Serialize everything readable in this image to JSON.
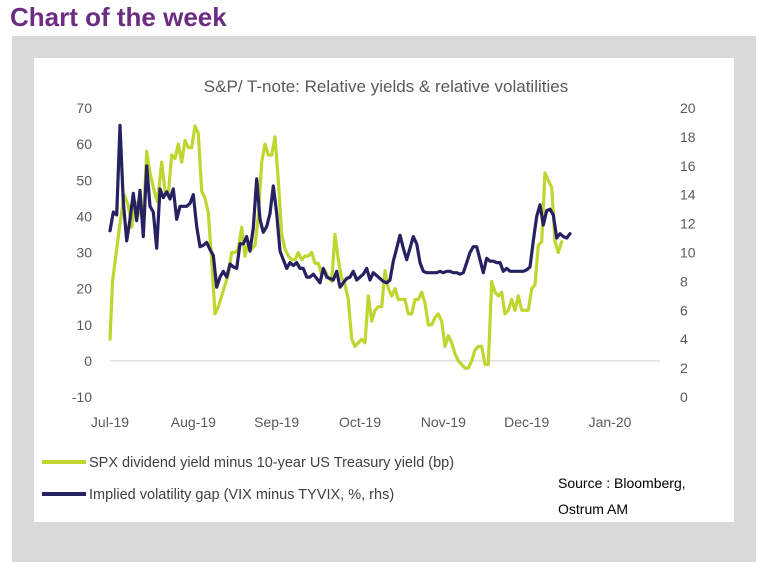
{
  "page": {
    "heading": "Chart of the week"
  },
  "colors": {
    "heading": "#6b2c82",
    "series_dividend": "#bfd630",
    "series_vol": "#262262",
    "frame": "#d9d9d9"
  },
  "chart_data": {
    "type": "line",
    "title": "S&P/ T-note: Relative yields & relative volatilities",
    "x_tick_labels": [
      "Jul-19",
      "Aug-19",
      "Sep-19",
      "Oct-19",
      "Nov-19",
      "Dec-19",
      "Jan-20"
    ],
    "x_range": [
      0,
      6.6
    ],
    "y_left": {
      "range": [
        -10,
        70
      ],
      "ticks": [
        -10,
        0,
        10,
        20,
        30,
        40,
        50,
        60,
        70
      ]
    },
    "y_right": {
      "range": [
        0,
        20
      ],
      "ticks": [
        0,
        2,
        4,
        6,
        8,
        10,
        12,
        14,
        16,
        18,
        20
      ]
    },
    "series": [
      {
        "name": "SPX dividend yield minus 10-year US Treasury yield (bp)",
        "axis": "left",
        "color": "#bfd630",
        "points": [
          [
            0.0,
            6
          ],
          [
            0.03,
            22
          ],
          [
            0.07,
            29
          ],
          [
            0.12,
            38
          ],
          [
            0.17,
            46
          ],
          [
            0.22,
            43
          ],
          [
            0.26,
            37
          ],
          [
            0.3,
            44
          ],
          [
            0.35,
            42
          ],
          [
            0.4,
            38
          ],
          [
            0.44,
            58
          ],
          [
            0.48,
            52
          ],
          [
            0.52,
            48
          ],
          [
            0.57,
            44
          ],
          [
            0.62,
            55
          ],
          [
            0.66,
            47
          ],
          [
            0.7,
            46
          ],
          [
            0.74,
            57
          ],
          [
            0.78,
            56
          ],
          [
            0.82,
            60
          ],
          [
            0.86,
            55
          ],
          [
            0.9,
            61
          ],
          [
            0.94,
            59
          ],
          [
            0.98,
            59
          ],
          [
            1.02,
            65
          ],
          [
            1.06,
            63
          ],
          [
            1.1,
            47
          ],
          [
            1.14,
            45
          ],
          [
            1.18,
            41
          ],
          [
            1.22,
            28
          ],
          [
            1.26,
            13
          ],
          [
            1.3,
            15
          ],
          [
            1.34,
            18
          ],
          [
            1.38,
            21
          ],
          [
            1.42,
            24
          ],
          [
            1.46,
            30
          ],
          [
            1.5,
            30
          ],
          [
            1.54,
            31
          ],
          [
            1.58,
            37
          ],
          [
            1.62,
            29
          ],
          [
            1.66,
            33
          ],
          [
            1.7,
            31
          ],
          [
            1.74,
            32
          ],
          [
            1.78,
            40
          ],
          [
            1.82,
            55
          ],
          [
            1.86,
            60
          ],
          [
            1.9,
            57
          ],
          [
            1.94,
            57
          ],
          [
            1.98,
            62
          ],
          [
            2.02,
            50
          ],
          [
            2.06,
            35
          ],
          [
            2.1,
            31
          ],
          [
            2.14,
            29
          ],
          [
            2.18,
            28
          ],
          [
            2.22,
            28
          ],
          [
            2.26,
            30
          ],
          [
            2.3,
            28
          ],
          [
            2.34,
            29
          ],
          [
            2.38,
            29
          ],
          [
            2.42,
            30
          ],
          [
            2.46,
            27
          ],
          [
            2.5,
            27
          ],
          [
            2.54,
            24
          ],
          [
            2.58,
            25
          ],
          [
            2.62,
            23
          ],
          [
            2.66,
            22
          ],
          [
            2.7,
            35
          ],
          [
            2.74,
            28
          ],
          [
            2.78,
            23
          ],
          [
            2.82,
            21
          ],
          [
            2.86,
            17
          ],
          [
            2.9,
            6
          ],
          [
            2.94,
            4
          ],
          [
            2.98,
            5
          ],
          [
            3.02,
            6
          ],
          [
            3.06,
            5
          ],
          [
            3.1,
            18
          ],
          [
            3.14,
            11
          ],
          [
            3.18,
            14
          ],
          [
            3.22,
            15
          ],
          [
            3.26,
            15
          ],
          [
            3.3,
            25
          ],
          [
            3.34,
            20
          ],
          [
            3.38,
            18
          ],
          [
            3.42,
            20
          ],
          [
            3.46,
            17
          ],
          [
            3.5,
            17
          ],
          [
            3.54,
            17
          ],
          [
            3.58,
            13
          ],
          [
            3.62,
            13
          ],
          [
            3.66,
            17
          ],
          [
            3.7,
            17
          ],
          [
            3.74,
            19
          ],
          [
            3.78,
            16
          ],
          [
            3.82,
            10
          ],
          [
            3.86,
            10
          ],
          [
            3.9,
            12
          ],
          [
            3.94,
            13
          ],
          [
            3.98,
            11
          ],
          [
            4.02,
            4
          ],
          [
            4.06,
            7
          ],
          [
            4.1,
            5
          ],
          [
            4.14,
            2
          ],
          [
            4.18,
            0
          ],
          [
            4.22,
            -1
          ],
          [
            4.26,
            -2
          ],
          [
            4.3,
            -2
          ],
          [
            4.34,
            0
          ],
          [
            4.38,
            3
          ],
          [
            4.42,
            4
          ],
          [
            4.46,
            4
          ],
          [
            4.5,
            -1
          ],
          [
            4.54,
            -1
          ],
          [
            4.58,
            22
          ],
          [
            4.62,
            19
          ],
          [
            4.66,
            18
          ],
          [
            4.7,
            19
          ],
          [
            4.74,
            13
          ],
          [
            4.78,
            14
          ],
          [
            4.82,
            17
          ],
          [
            4.86,
            14
          ],
          [
            4.9,
            18
          ],
          [
            4.94,
            14
          ],
          [
            4.98,
            14
          ],
          [
            5.02,
            14
          ],
          [
            5.06,
            20
          ],
          [
            5.1,
            21
          ],
          [
            5.14,
            32
          ],
          [
            5.18,
            33
          ],
          [
            5.22,
            52
          ],
          [
            5.26,
            50
          ],
          [
            5.3,
            48
          ],
          [
            5.34,
            33
          ],
          [
            5.38,
            30
          ],
          [
            5.42,
            33
          ]
        ]
      },
      {
        "name": "Implied volatility gap (VIX minus TYVIX, %, rhs)",
        "axis": "right",
        "color": "#262262",
        "points": [
          [
            0.0,
            11.5
          ],
          [
            0.04,
            12.8
          ],
          [
            0.08,
            12.6
          ],
          [
            0.12,
            18.8
          ],
          [
            0.16,
            13.5
          ],
          [
            0.2,
            10.8
          ],
          [
            0.24,
            12.3
          ],
          [
            0.28,
            14.1
          ],
          [
            0.32,
            12.2
          ],
          [
            0.36,
            14.3
          ],
          [
            0.4,
            11.1
          ],
          [
            0.44,
            16.0
          ],
          [
            0.48,
            13.2
          ],
          [
            0.52,
            12.8
          ],
          [
            0.56,
            10.3
          ],
          [
            0.6,
            14.4
          ],
          [
            0.64,
            13.8
          ],
          [
            0.68,
            14.2
          ],
          [
            0.72,
            13.7
          ],
          [
            0.76,
            14.4
          ],
          [
            0.8,
            12.3
          ],
          [
            0.84,
            13.2
          ],
          [
            0.88,
            13.2
          ],
          [
            0.92,
            13.2
          ],
          [
            0.96,
            13.4
          ],
          [
            1.0,
            14.0
          ],
          [
            1.04,
            11.8
          ],
          [
            1.08,
            10.4
          ],
          [
            1.12,
            10.5
          ],
          [
            1.16,
            10.7
          ],
          [
            1.2,
            10.2
          ],
          [
            1.24,
            9.8
          ],
          [
            1.28,
            7.6
          ],
          [
            1.32,
            8.3
          ],
          [
            1.36,
            8.7
          ],
          [
            1.4,
            8.3
          ],
          [
            1.44,
            9.2
          ],
          [
            1.48,
            9.0
          ],
          [
            1.52,
            8.9
          ],
          [
            1.56,
            10.6
          ],
          [
            1.6,
            10.6
          ],
          [
            1.64,
            11.1
          ],
          [
            1.68,
            10.1
          ],
          [
            1.72,
            11.7
          ],
          [
            1.76,
            15.1
          ],
          [
            1.8,
            12.3
          ],
          [
            1.84,
            11.4
          ],
          [
            1.88,
            11.8
          ],
          [
            1.92,
            12.7
          ],
          [
            1.96,
            14.6
          ],
          [
            2.0,
            12.7
          ],
          [
            2.04,
            10.1
          ],
          [
            2.08,
            9.5
          ],
          [
            2.12,
            8.9
          ],
          [
            2.16,
            9.3
          ],
          [
            2.2,
            9.1
          ],
          [
            2.24,
            9.3
          ],
          [
            2.28,
            8.9
          ],
          [
            2.32,
            8.9
          ],
          [
            2.36,
            8.3
          ],
          [
            2.4,
            8.3
          ],
          [
            2.44,
            8.5
          ],
          [
            2.48,
            8.2
          ],
          [
            2.52,
            7.9
          ],
          [
            2.56,
            8.9
          ],
          [
            2.6,
            8.3
          ],
          [
            2.64,
            8.2
          ],
          [
            2.68,
            8.1
          ],
          [
            2.72,
            8.7
          ],
          [
            2.76,
            7.6
          ],
          [
            2.8,
            7.9
          ],
          [
            2.84,
            8.2
          ],
          [
            2.88,
            8.3
          ],
          [
            2.92,
            8.7
          ],
          [
            2.96,
            8.1
          ],
          [
            3.0,
            8.3
          ],
          [
            3.04,
            8.5
          ],
          [
            3.08,
            8.9
          ],
          [
            3.12,
            8.1
          ],
          [
            3.16,
            8.6
          ],
          [
            3.2,
            8.4
          ],
          [
            3.24,
            8.2
          ],
          [
            3.28,
            8.0
          ],
          [
            3.32,
            7.9
          ],
          [
            3.36,
            8.1
          ],
          [
            3.4,
            9.4
          ],
          [
            3.44,
            10.3
          ],
          [
            3.48,
            11.2
          ],
          [
            3.52,
            10.3
          ],
          [
            3.56,
            9.5
          ],
          [
            3.6,
            10.3
          ],
          [
            3.64,
            11.1
          ],
          [
            3.68,
            10.6
          ],
          [
            3.72,
            9.3
          ],
          [
            3.76,
            8.7
          ],
          [
            3.8,
            8.6
          ],
          [
            3.84,
            8.6
          ],
          [
            3.88,
            8.6
          ],
          [
            3.92,
            8.6
          ],
          [
            3.96,
            8.7
          ],
          [
            4.0,
            8.6
          ],
          [
            4.04,
            8.7
          ],
          [
            4.08,
            8.7
          ],
          [
            4.12,
            8.6
          ],
          [
            4.16,
            8.6
          ],
          [
            4.2,
            8.5
          ],
          [
            4.24,
            8.6
          ],
          [
            4.28,
            9.3
          ],
          [
            4.32,
            10.0
          ],
          [
            4.36,
            10.4
          ],
          [
            4.4,
            10.4
          ],
          [
            4.44,
            9.5
          ],
          [
            4.48,
            8.6
          ],
          [
            4.52,
            9.6
          ],
          [
            4.56,
            9.4
          ],
          [
            4.6,
            9.4
          ],
          [
            4.64,
            9.3
          ],
          [
            4.68,
            9.3
          ],
          [
            4.72,
            8.7
          ],
          [
            4.76,
            8.9
          ],
          [
            4.8,
            8.7
          ],
          [
            4.84,
            8.7
          ],
          [
            4.88,
            8.7
          ],
          [
            4.92,
            8.7
          ],
          [
            4.96,
            8.7
          ],
          [
            5.0,
            8.8
          ],
          [
            5.04,
            9.0
          ],
          [
            5.08,
            10.8
          ],
          [
            5.12,
            12.5
          ],
          [
            5.16,
            13.3
          ],
          [
            5.2,
            11.9
          ],
          [
            5.24,
            12.9
          ],
          [
            5.28,
            13.0
          ],
          [
            5.32,
            12.6
          ],
          [
            5.36,
            11.0
          ],
          [
            5.4,
            11.3
          ],
          [
            5.44,
            11.1
          ],
          [
            5.48,
            11.0
          ],
          [
            5.52,
            11.3
          ]
        ]
      }
    ],
    "legend": [
      "SPX dividend yield minus 10-year US Treasury yield (bp)",
      "Implied volatility gap (VIX minus TYVIX, %, rhs)"
    ],
    "source": [
      "Source : Bloomberg,",
      "Ostrum AM"
    ]
  }
}
